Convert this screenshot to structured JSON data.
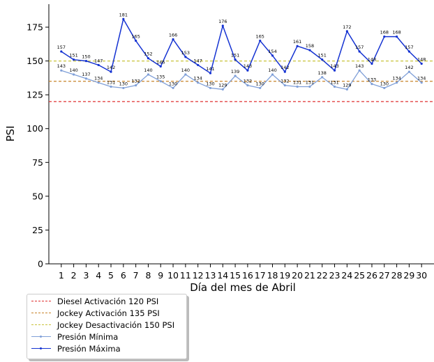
{
  "chart_data": {
    "type": "line",
    "title": "",
    "xlabel": "Día del mes de  Abril",
    "ylabel": "PSI",
    "x": [
      1,
      2,
      3,
      4,
      5,
      6,
      7,
      8,
      9,
      10,
      11,
      12,
      13,
      14,
      15,
      16,
      17,
      18,
      19,
      20,
      21,
      22,
      23,
      24,
      25,
      26,
      27,
      28,
      29,
      30
    ],
    "xlim": [
      0,
      31
    ],
    "ylim": [
      0,
      192
    ],
    "yticks": [
      0,
      25,
      50,
      75,
      100,
      125,
      150,
      175
    ],
    "grid": false,
    "legend_position": "bottom-left outside",
    "reference_lines": [
      {
        "name": "Diesel Activación 120 PSI",
        "y": 120,
        "color": "#e03030",
        "style": "dashed"
      },
      {
        "name": "Jockey Activación 135 PSI",
        "y": 135,
        "color": "#c8822a",
        "style": "dashed"
      },
      {
        "name": "Jockey Desactivación 150 PSI",
        "y": 150,
        "color": "#c8c23a",
        "style": "dashed"
      }
    ],
    "series": [
      {
        "name": "Presión Mínima",
        "color": "#7f9fd8",
        "values": [
          143,
          140,
          137,
          134,
          131,
          130,
          132,
          140,
          135,
          130,
          140,
          134,
          130,
          129,
          139,
          132,
          130,
          140,
          132,
          131,
          131,
          138,
          131,
          129,
          143,
          133,
          130,
          134,
          142,
          134
        ]
      },
      {
        "name": "Presión Máxima",
        "color": "#1432d2",
        "values": [
          157,
          151,
          150,
          147,
          142,
          181,
          165,
          152,
          146,
          166,
          153,
          147,
          141,
          176,
          151,
          143,
          165,
          154,
          142,
          161,
          158,
          151,
          143,
          172,
          157,
          148,
          168,
          168,
          157,
          148
        ]
      }
    ]
  },
  "legend": {
    "items": [
      {
        "label": "Diesel Activación 120 PSI",
        "color": "#e03030",
        "kind": "dashed"
      },
      {
        "label": "Jockey Activación 135 PSI",
        "color": "#c8822a",
        "kind": "dashed"
      },
      {
        "label": "Jockey Desactivación 150 PSI",
        "color": "#c8c23a",
        "kind": "dashed"
      },
      {
        "label": "Presión Mínima",
        "color": "#7f9fd8",
        "kind": "marker"
      },
      {
        "label": "Presión Máxima",
        "color": "#1432d2",
        "kind": "marker"
      }
    ]
  }
}
